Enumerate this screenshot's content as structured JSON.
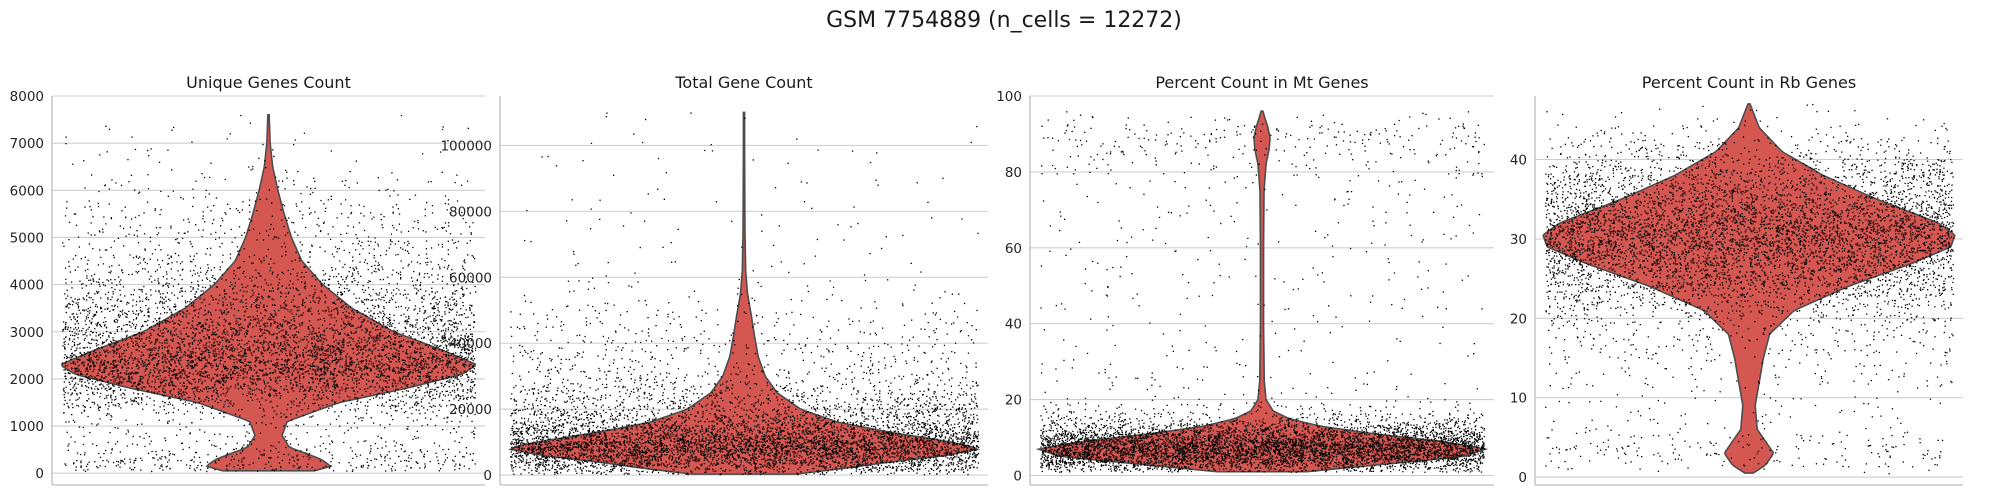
{
  "figure": {
    "title": "GSM 7754889 (n_cells = 12272)"
  },
  "colors": {
    "violin_fill": "#d45752",
    "violin_edge": "#4d4d4d",
    "points": "#000000",
    "grid": "#cfcfcf"
  },
  "chart_data": [
    {
      "type": "violin",
      "title": "Unique Genes Count",
      "xlabel": "",
      "ylabel": "",
      "ylim": [
        -250,
        8000
      ],
      "yticks": [
        0,
        1000,
        2000,
        3000,
        4000,
        5000,
        6000,
        7000,
        8000
      ],
      "tick_labels": [
        "0",
        "1000",
        "2000",
        "3000",
        "4000",
        "5000",
        "6000",
        "7000",
        "8000"
      ],
      "grid": true,
      "jitter_points": true,
      "n_points": 12272,
      "range": [
        50,
        7600
      ],
      "median": 2300,
      "density_profile": [
        {
          "y": 50,
          "width": 0.22
        },
        {
          "y": 150,
          "width": 0.3
        },
        {
          "y": 300,
          "width": 0.25
        },
        {
          "y": 550,
          "width": 0.1
        },
        {
          "y": 800,
          "width": 0.065
        },
        {
          "y": 1100,
          "width": 0.09
        },
        {
          "y": 1500,
          "width": 0.34
        },
        {
          "y": 1800,
          "width": 0.66
        },
        {
          "y": 2100,
          "width": 0.93
        },
        {
          "y": 2300,
          "width": 1.0
        },
        {
          "y": 2600,
          "width": 0.84
        },
        {
          "y": 3000,
          "width": 0.6
        },
        {
          "y": 3500,
          "width": 0.4
        },
        {
          "y": 4000,
          "width": 0.26
        },
        {
          "y": 4500,
          "width": 0.16
        },
        {
          "y": 5000,
          "width": 0.11
        },
        {
          "y": 5500,
          "width": 0.075
        },
        {
          "y": 6000,
          "width": 0.045
        },
        {
          "y": 6500,
          "width": 0.02
        },
        {
          "y": 7000,
          "width": 0.008
        },
        {
          "y": 7600,
          "width": 0.003
        }
      ]
    },
    {
      "type": "violin",
      "title": "Total Gene Count",
      "xlabel": "",
      "ylabel": "",
      "ylim": [
        -3000,
        115000
      ],
      "yticks": [
        0,
        20000,
        40000,
        60000,
        80000,
        100000
      ],
      "tick_labels": [
        "0",
        "20000",
        "40000",
        "60000",
        "80000",
        "100000"
      ],
      "grid": true,
      "jitter_points": true,
      "n_points": 12272,
      "range": [
        300,
        110000
      ],
      "median": 8000,
      "density_profile": [
        {
          "y": 300,
          "width": 0.22
        },
        {
          "y": 2000,
          "width": 0.42
        },
        {
          "y": 4000,
          "width": 0.62
        },
        {
          "y": 6000,
          "width": 0.86
        },
        {
          "y": 8000,
          "width": 1.0
        },
        {
          "y": 10000,
          "width": 0.88
        },
        {
          "y": 13000,
          "width": 0.62
        },
        {
          "y": 16000,
          "width": 0.4
        },
        {
          "y": 20000,
          "width": 0.24
        },
        {
          "y": 25000,
          "width": 0.14
        },
        {
          "y": 30000,
          "width": 0.09
        },
        {
          "y": 36000,
          "width": 0.06
        },
        {
          "y": 42000,
          "width": 0.045
        },
        {
          "y": 48000,
          "width": 0.032
        },
        {
          "y": 55000,
          "width": 0.015
        },
        {
          "y": 62000,
          "width": 0.007
        },
        {
          "y": 75000,
          "width": 0.004
        },
        {
          "y": 90000,
          "width": 0.003
        },
        {
          "y": 110000,
          "width": 0.002
        }
      ]
    },
    {
      "type": "violin",
      "title": "Percent Count in Mt Genes",
      "xlabel": "",
      "ylabel": "",
      "ylim": [
        -2.5,
        100
      ],
      "yticks": [
        0,
        20,
        40,
        60,
        80,
        100
      ],
      "tick_labels": [
        "0",
        "20",
        "40",
        "60",
        "80",
        "100"
      ],
      "grid": true,
      "jitter_points": true,
      "n_points": 12272,
      "range": [
        1,
        96
      ],
      "median": 7,
      "density_profile": [
        {
          "y": 1,
          "width": 0.2
        },
        {
          "y": 3,
          "width": 0.55
        },
        {
          "y": 5,
          "width": 0.9
        },
        {
          "y": 7,
          "width": 1.0
        },
        {
          "y": 9,
          "width": 0.8
        },
        {
          "y": 11,
          "width": 0.5
        },
        {
          "y": 13,
          "width": 0.26
        },
        {
          "y": 15,
          "width": 0.12
        },
        {
          "y": 17,
          "width": 0.05
        },
        {
          "y": 20,
          "width": 0.018
        },
        {
          "y": 25,
          "width": 0.01
        },
        {
          "y": 40,
          "width": 0.007
        },
        {
          "y": 60,
          "width": 0.007
        },
        {
          "y": 75,
          "width": 0.009
        },
        {
          "y": 82,
          "width": 0.018
        },
        {
          "y": 86,
          "width": 0.032
        },
        {
          "y": 89,
          "width": 0.036
        },
        {
          "y": 92,
          "width": 0.025
        },
        {
          "y": 94,
          "width": 0.014
        },
        {
          "y": 96,
          "width": 0.004
        }
      ]
    },
    {
      "type": "violin",
      "title": "Percent Count in Rb Genes",
      "xlabel": "",
      "ylabel": "",
      "ylim": [
        -1,
        48
      ],
      "yticks": [
        0,
        10,
        20,
        30,
        40
      ],
      "tick_labels": [
        "0",
        "10",
        "20",
        "30",
        "40"
      ],
      "grid": true,
      "jitter_points": true,
      "n_points": 12272,
      "range": [
        0.5,
        47
      ],
      "median": 29,
      "density_profile": [
        {
          "y": 0.5,
          "width": 0.02
        },
        {
          "y": 1.5,
          "width": 0.08
        },
        {
          "y": 3,
          "width": 0.12
        },
        {
          "y": 4.5,
          "width": 0.08
        },
        {
          "y": 6,
          "width": 0.04
        },
        {
          "y": 9,
          "width": 0.03
        },
        {
          "y": 12,
          "width": 0.05
        },
        {
          "y": 15,
          "width": 0.07
        },
        {
          "y": 18,
          "width": 0.1
        },
        {
          "y": 21,
          "width": 0.22
        },
        {
          "y": 24,
          "width": 0.48
        },
        {
          "y": 27,
          "width": 0.8
        },
        {
          "y": 29,
          "width": 0.98
        },
        {
          "y": 30.5,
          "width": 1.0
        },
        {
          "y": 32,
          "width": 0.92
        },
        {
          "y": 35,
          "width": 0.62
        },
        {
          "y": 38,
          "width": 0.36
        },
        {
          "y": 41,
          "width": 0.16
        },
        {
          "y": 44,
          "width": 0.05
        },
        {
          "y": 47,
          "width": 0.005
        }
      ]
    }
  ]
}
